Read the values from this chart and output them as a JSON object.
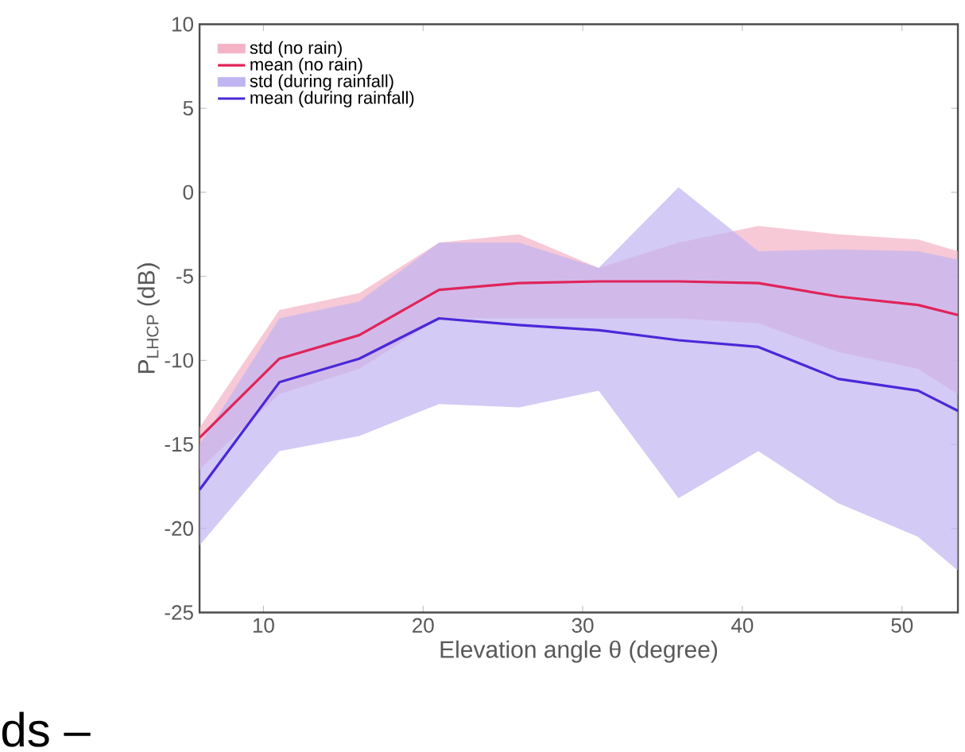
{
  "chart_data": {
    "type": "line",
    "xlabel": "Elevation angle θ (degree)",
    "ylabel": "P$_{LHCP}$ (dB)",
    "x": [
      6,
      11,
      16,
      21,
      26,
      31,
      36,
      41,
      46,
      51,
      53.5
    ],
    "series": [
      {
        "name": "mean (no rain)",
        "color": "#e0245a",
        "values": [
          -14.6,
          -9.9,
          -8.5,
          -5.8,
          -5.4,
          -5.3,
          -5.3,
          -5.4,
          -6.2,
          -6.7,
          -7.3
        ],
        "lower": [
          -16.5,
          -12,
          -10.5,
          -7.5,
          -7.5,
          -7.5,
          -7.5,
          -7.8,
          -9.5,
          -10.5,
          -12
        ],
        "upper": [
          -14,
          -7,
          -6,
          -3,
          -2.5,
          -4.5,
          -3,
          -2,
          -2.5,
          -2.8,
          -3.5
        ]
      },
      {
        "name": "mean (during rainfall)",
        "color": "#4b28d8",
        "values": [
          -17.7,
          -11.3,
          -9.9,
          -7.5,
          -7.9,
          -8.2,
          -8.8,
          -9.2,
          -11.1,
          -11.8,
          -13.0
        ],
        "lower": [
          -21,
          -15.4,
          -14.5,
          -12.6,
          -12.8,
          -11.8,
          -18.2,
          -15.4,
          -18.5,
          -20.5,
          -22.5
        ],
        "upper": [
          -15,
          -7.5,
          -6.5,
          -3,
          -3,
          -4.5,
          0.3,
          -3.5,
          -3.4,
          -3.5,
          -4
        ]
      }
    ],
    "xlim": [
      6,
      53.5
    ],
    "ylim": [
      -25,
      10
    ],
    "xticks": [
      10,
      20,
      30,
      40,
      50
    ],
    "yticks": [
      -25,
      -20,
      -15,
      -10,
      -5,
      0,
      5,
      10
    ],
    "grid": false,
    "legend": "top left",
    "marker": "none",
    "line_style": "solid",
    "annotations": [
      "std (no rain)",
      "std (during rainfall)",
      "ds –"
    ]
  }
}
